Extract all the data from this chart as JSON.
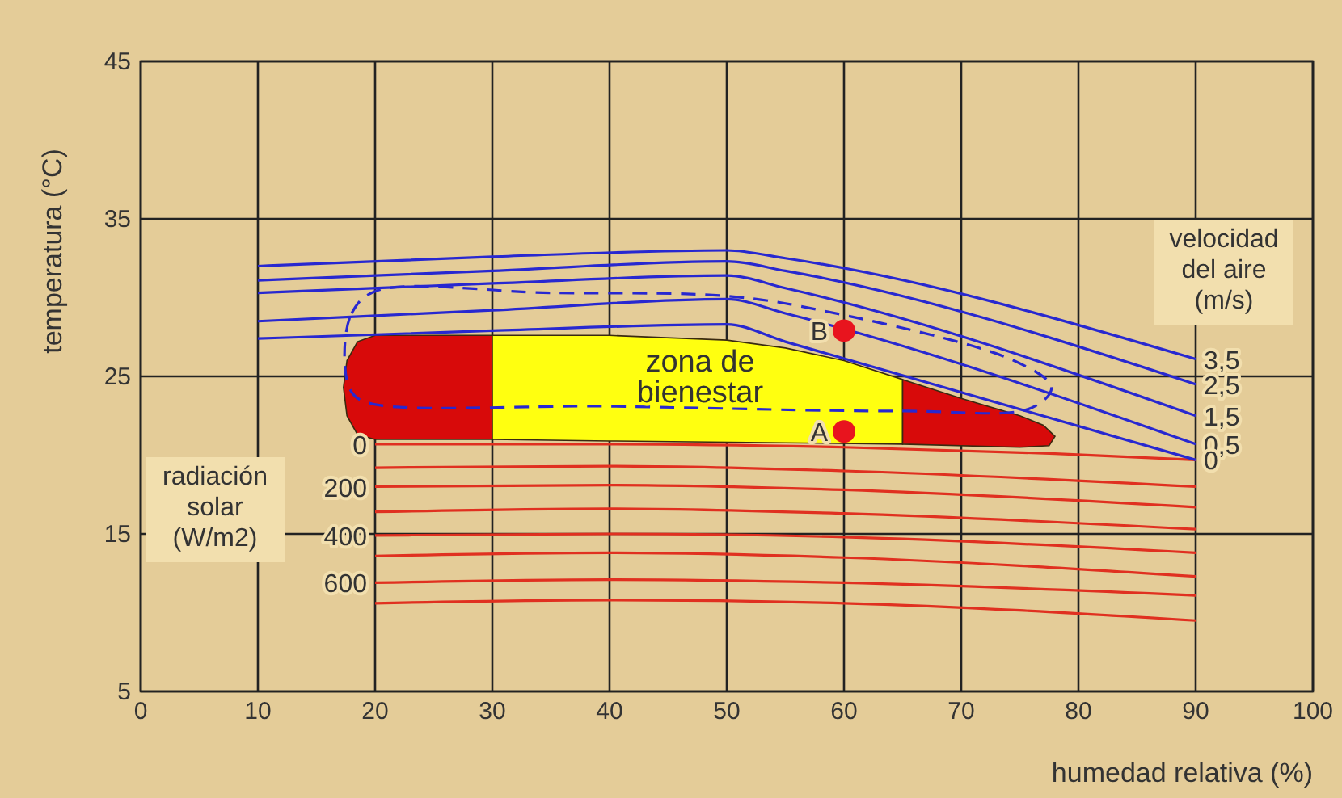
{
  "chart_data": {
    "type": "line",
    "xlabel": "humedad relativa (%)",
    "ylabel": "temperatura (°C)",
    "xlim": [
      0,
      100
    ],
    "ylim": [
      5,
      45
    ],
    "xticks": [
      0,
      10,
      20,
      30,
      40,
      50,
      60,
      70,
      80,
      90,
      100
    ],
    "yticks": [
      5,
      15,
      25,
      35,
      45
    ],
    "grid": true,
    "series": [
      {
        "name": "0",
        "color": "#e03020",
        "x": [
          20,
          40,
          60,
          78,
          90
        ],
        "values": [
          20.7,
          20.7,
          20.5,
          20.1,
          19.7
        ]
      },
      {
        "color": "#e03020",
        "x": [
          20,
          40,
          60,
          90
        ],
        "values": [
          19.2,
          19.3,
          19,
          18
        ]
      },
      {
        "name": "200",
        "color": "#e03020",
        "x": [
          20,
          40,
          60,
          90
        ],
        "values": [
          18,
          18.1,
          17.8,
          16.7
        ]
      },
      {
        "color": "#e03020",
        "x": [
          20,
          40,
          60,
          90
        ],
        "values": [
          16.4,
          16.6,
          16.3,
          15.3
        ]
      },
      {
        "name": "400",
        "color": "#e03020",
        "x": [
          20,
          40,
          60,
          90
        ],
        "values": [
          14.9,
          15,
          14.8,
          13.8
        ]
      },
      {
        "color": "#e03020",
        "x": [
          20,
          40,
          60,
          90
        ],
        "values": [
          13.6,
          13.8,
          13.5,
          12.3
        ]
      },
      {
        "name": "600",
        "color": "#e03020",
        "x": [
          20,
          40,
          60,
          90
        ],
        "values": [
          11.9,
          12.1,
          11.9,
          11.1
        ]
      },
      {
        "color": "#e03020",
        "x": [
          20,
          40,
          60,
          90
        ],
        "values": [
          10.6,
          10.8,
          10.6,
          9.5
        ]
      },
      {
        "name": "3,5",
        "color": "#2828d0",
        "x": [
          10,
          30,
          50,
          55,
          90
        ],
        "values": [
          32,
          32.6,
          33,
          32.5,
          26.1
        ]
      },
      {
        "name": "2,5",
        "color": "#2828d0",
        "x": [
          10,
          30,
          50,
          55,
          90
        ],
        "values": [
          31.1,
          31.7,
          32.3,
          31.7,
          24.5
        ]
      },
      {
        "name": "1,5",
        "color": "#2828d0",
        "x": [
          10,
          30,
          50,
          55,
          90
        ],
        "values": [
          30.3,
          30.9,
          31.4,
          30.6,
          22.5
        ]
      },
      {
        "name": "0,5",
        "color": "#2828d0",
        "x": [
          10,
          30,
          50,
          55,
          90
        ],
        "values": [
          28.5,
          29.2,
          29.9,
          29,
          20.7
        ]
      },
      {
        "name": "0",
        "color": "#2828d0",
        "x": [
          10,
          30,
          50,
          55,
          90
        ],
        "values": [
          27.4,
          27.9,
          28.3,
          27.2,
          19.7
        ]
      },
      {
        "type": "scatter",
        "color": "#e8141e",
        "x": [
          60,
          60
        ],
        "values": [
          21.5,
          27.9
        ]
      }
    ],
    "annotations": [
      {
        "text": "A",
        "x": 60,
        "y": 21.5
      },
      {
        "text": "B",
        "x": 60,
        "y": 27.9
      },
      "velocidad\ndel aire\n(m/s)",
      "radiación\nsolar\n(W/m2)",
      "zona de\nbienestar"
    ]
  }
}
